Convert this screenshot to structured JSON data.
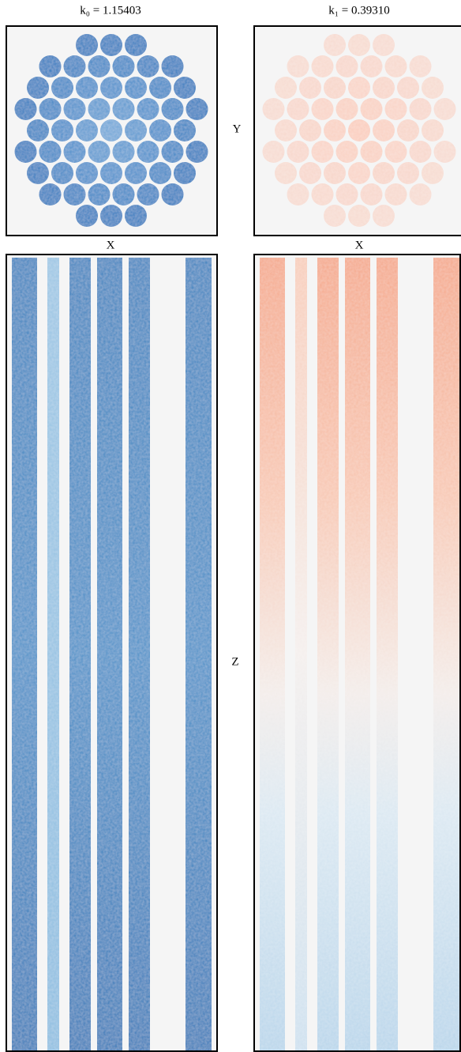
{
  "panels": [
    {
      "title": "k₀ = 1.15403",
      "x_label": "X"
    },
    {
      "title": "k₁ = 0.39310",
      "x_label": "X"
    }
  ],
  "y_label": "Y",
  "z_label": "Z"
}
